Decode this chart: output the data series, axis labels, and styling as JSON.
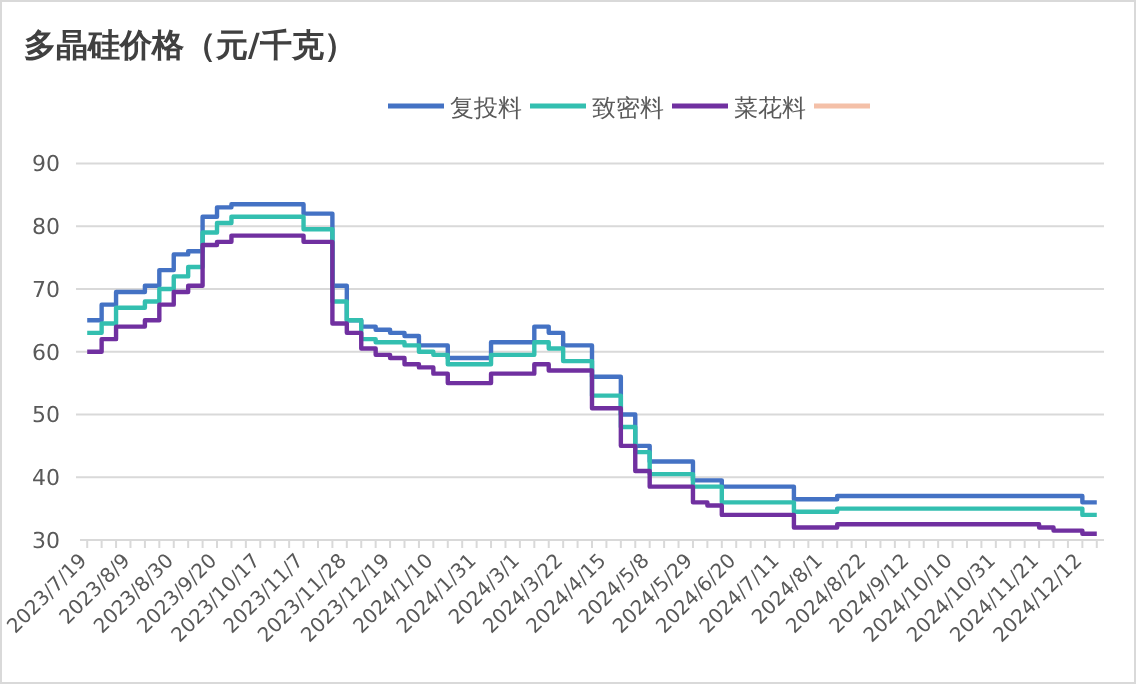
{
  "chart_data": {
    "type": "step",
    "title": "多晶硅价格（元/千克）",
    "categories": [
      "2023/7/19",
      null,
      null,
      "2023/8/9",
      null,
      null,
      "2023/8/30",
      null,
      null,
      "2023/9/20",
      null,
      null,
      "2023/10/17",
      null,
      null,
      "2023/11/7",
      null,
      null,
      "2023/11/28",
      null,
      null,
      "2023/12/19",
      null,
      null,
      "2024/1/10",
      null,
      null,
      "2024/1/31",
      null,
      null,
      "2024/3/1",
      null,
      null,
      "2024/3/22",
      null,
      null,
      "2024/4/15",
      null,
      null,
      "2024/5/8",
      null,
      null,
      "2024/5/29",
      null,
      null,
      "2024/6/20",
      null,
      null,
      "2024/7/11",
      null,
      null,
      "2024/8/1",
      null,
      null,
      "2024/8/22",
      null,
      null,
      "2024/9/12",
      null,
      null,
      "2024/10/10",
      null,
      null,
      "2024/10/31",
      null,
      null,
      "2024/11/21",
      null,
      null,
      "2024/12/12",
      null
    ],
    "series": [
      {
        "name": "复投料",
        "color": "#4472c4",
        "values": [
          65,
          67.5,
          69.5,
          69.5,
          70.5,
          73,
          75.5,
          76,
          81.5,
          83,
          83.5,
          83.5,
          83.5,
          83.5,
          83.5,
          82,
          82,
          70.5,
          65,
          64,
          63.5,
          63,
          62.5,
          61,
          61,
          59,
          59,
          59,
          61.5,
          61.5,
          61.5,
          64,
          63,
          61,
          61,
          56,
          56,
          50,
          45,
          42.5,
          42.5,
          42.5,
          39.5,
          39.5,
          38.5,
          38.5,
          38.5,
          38.5,
          38.5,
          36.5,
          36.5,
          36.5,
          37,
          37,
          37,
          37,
          37,
          37,
          37,
          37,
          37,
          37,
          37,
          37,
          37,
          37,
          37,
          37,
          37,
          36,
          36
        ]
      },
      {
        "name": "致密料",
        "color": "#33bfb0",
        "values": [
          63,
          64.5,
          67,
          67,
          68,
          70,
          72,
          73.5,
          79,
          80.5,
          81.5,
          81.5,
          81.5,
          81.5,
          81.5,
          79.5,
          79.5,
          68,
          65,
          62,
          61.5,
          61.5,
          61,
          60,
          59.5,
          58,
          58,
          58,
          59.5,
          59.5,
          59.5,
          61.5,
          60.5,
          58.5,
          58.5,
          53,
          53,
          48,
          44,
          40.5,
          40.5,
          40.5,
          38.5,
          38.5,
          36,
          36,
          36,
          36,
          36,
          34.5,
          34.5,
          34.5,
          35,
          35,
          35,
          35,
          35,
          35,
          35,
          35,
          35,
          35,
          35,
          35,
          35,
          35,
          35,
          35,
          35,
          34,
          34
        ]
      },
      {
        "name": "菜花料",
        "color": "#7030a0",
        "values": [
          60,
          62,
          64,
          64,
          65,
          67.5,
          69.5,
          70.5,
          77,
          77.5,
          78.5,
          78.5,
          78.5,
          78.5,
          78.5,
          77.5,
          77.5,
          64.5,
          63,
          60.5,
          59.5,
          59,
          58,
          57.5,
          56.5,
          55,
          55,
          55,
          56.5,
          56.5,
          56.5,
          58,
          57,
          57,
          57,
          51,
          51,
          45,
          41,
          38.5,
          38.5,
          38.5,
          36,
          35.5,
          34,
          34,
          34,
          34,
          34,
          32,
          32,
          32,
          32.5,
          32.5,
          32.5,
          32.5,
          32.5,
          32.5,
          32.5,
          32.5,
          32.5,
          32.5,
          32.5,
          32.5,
          32.5,
          32.5,
          32,
          31.5,
          31.5,
          31,
          31
        ]
      },
      {
        "color": "#f4c0a8",
        "values": [
          null,
          null,
          null,
          null,
          null,
          null,
          null,
          null,
          null,
          null,
          null,
          null,
          null,
          null,
          null,
          null,
          null,
          null,
          null,
          null,
          null,
          null,
          null,
          null,
          null,
          null,
          null,
          null,
          null,
          null,
          null,
          null,
          null,
          null,
          null,
          null,
          null,
          null,
          null,
          null,
          null,
          null,
          null,
          null,
          null,
          null,
          null,
          null,
          null,
          null,
          null,
          null,
          null,
          null,
          null,
          null,
          null,
          null,
          null,
          null,
          null,
          null,
          null,
          null,
          null,
          null,
          null,
          null,
          null,
          null,
          null
        ]
      }
    ],
    "ylim": [
      30,
      90
    ],
    "yticks": [
      30,
      40,
      50,
      60,
      70,
      80,
      90
    ],
    "grid": "y",
    "legend": "top"
  }
}
